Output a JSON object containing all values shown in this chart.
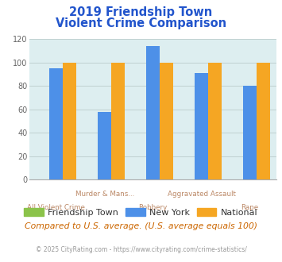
{
  "title_line1": "2019 Friendship Town",
  "title_line2": "Violent Crime Comparison",
  "title_color": "#2255cc",
  "categories": [
    "All Violent Crime",
    "Murder & Mans...",
    "Robbery",
    "Aggravated Assault",
    "Rape"
  ],
  "label_top": [
    "",
    "Murder & Mans...",
    "",
    "Aggravated Assault",
    ""
  ],
  "label_bot": [
    "All Violent Crime",
    "",
    "Robbery",
    "",
    "Rape"
  ],
  "friendship_town": [
    0,
    0,
    0,
    0,
    0
  ],
  "new_york": [
    95,
    58,
    114,
    91,
    80
  ],
  "national": [
    100,
    100,
    100,
    100,
    100
  ],
  "friendship_town_color": "#8bc34a",
  "new_york_color": "#4d90e8",
  "national_color": "#f5a623",
  "ylim": [
    0,
    120
  ],
  "yticks": [
    0,
    20,
    40,
    60,
    80,
    100,
    120
  ],
  "grid_color": "#bbcccc",
  "plot_bg_color": "#ddeef0",
  "legend_labels": [
    "Friendship Town",
    "New York",
    "National"
  ],
  "label_top_color": "#bb8866",
  "label_bot_color": "#bb8866",
  "note_text": "Compared to U.S. average. (U.S. average equals 100)",
  "note_color": "#cc6600",
  "copyright_text": "© 2025 CityRating.com - https://www.cityrating.com/crime-statistics/",
  "copyright_color": "#999999",
  "bar_width": 0.28
}
